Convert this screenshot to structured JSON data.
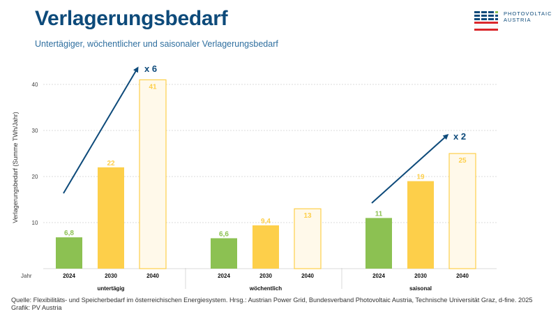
{
  "title": "Verlagerungsbedarf",
  "subtitle": "Untertägiger, wöchentlicher und saisonaler Verlagerungsbedarf",
  "logo": {
    "line1": "PHOTOVOLTAIC",
    "line2": "AUSTRIA"
  },
  "footer": {
    "source": "Quelle: Flexibilitäts- und Speicherbedarf im österreichischen Energiesystem. Hrsg.: Austrian Power Grid, Bundesverband Photovoltaic Austria, Technische Universität Graz, d-fine. 2025",
    "credit": "Grafik: PV Austria"
  },
  "colors": {
    "green": "#8cc152",
    "yellow": "#fdcf4a",
    "pale_fill": "#fff9ea",
    "pale_stroke": "#fdcf4a",
    "arrow": "#0d4a7a",
    "title": "#0d4a7a"
  },
  "chart_data": {
    "type": "bar",
    "ylabel": "Verlagerungsbedarf (Summe TWh/Jahr)",
    "xlabel_prefix": "Jahr",
    "ylim": [
      0,
      42
    ],
    "yticks": [
      10,
      20,
      30,
      40
    ],
    "groups": [
      {
        "name": "untertägig",
        "categories": [
          "2024",
          "2030",
          "2040"
        ],
        "values": [
          6.8,
          22,
          41
        ],
        "labels": [
          "6,8",
          "22",
          "41"
        ]
      },
      {
        "name": "wöchentlich",
        "categories": [
          "2024",
          "2030",
          "2040"
        ],
        "values": [
          6.6,
          9.4,
          13
        ],
        "labels": [
          "6,6",
          "9,4",
          "13"
        ]
      },
      {
        "name": "saisonal",
        "categories": [
          "2024",
          "2030",
          "2040"
        ],
        "values": [
          11,
          19,
          25
        ],
        "labels": [
          "11",
          "19",
          "25"
        ]
      }
    ],
    "annotations": [
      {
        "text": "x 6",
        "group": "untertägig"
      },
      {
        "text": "x 2",
        "group": "saisonal"
      }
    ]
  }
}
